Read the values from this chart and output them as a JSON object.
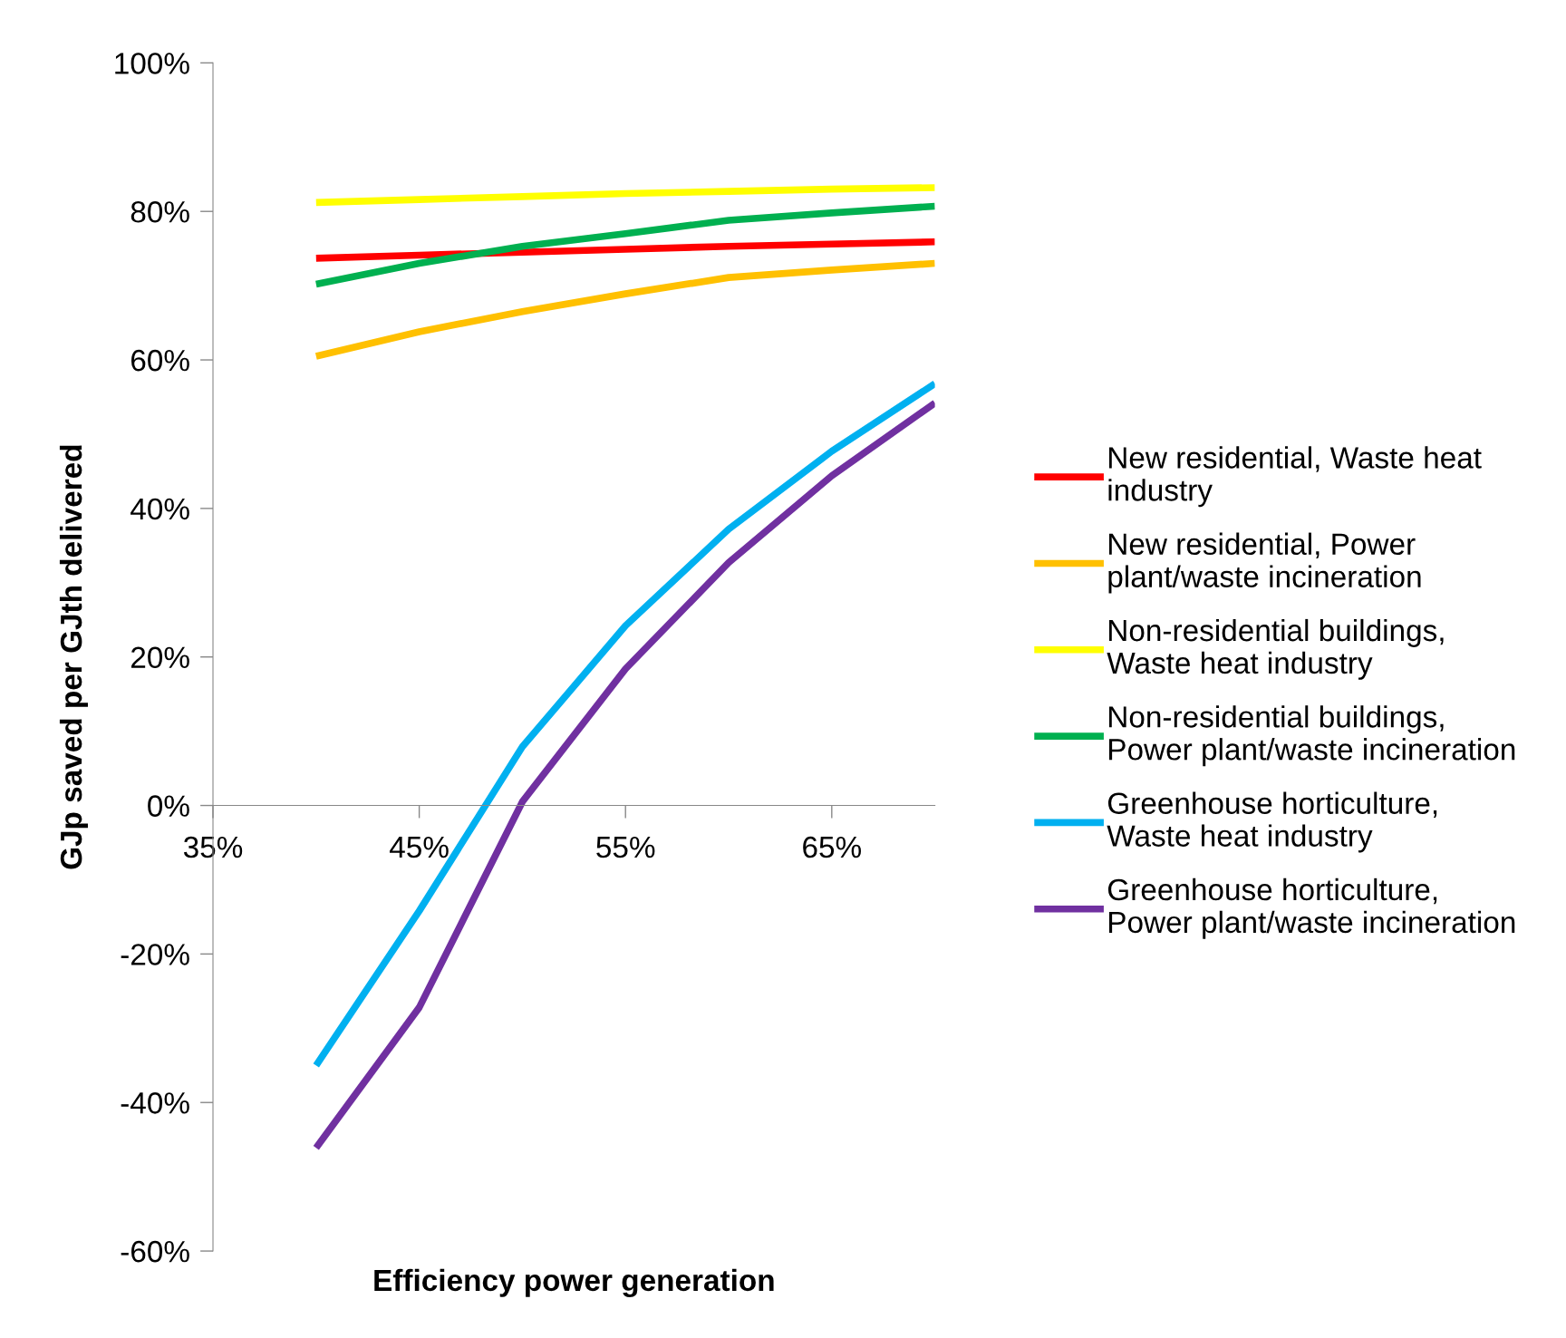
{
  "chart_data": {
    "type": "line",
    "xlabel": "Efficiency power generation",
    "ylabel": "GJp saved per GJth delivered",
    "x": [
      40,
      45,
      50,
      55,
      60,
      65,
      70
    ],
    "series": [
      {
        "name": "New residential, Waste heat\nindustry",
        "color": "#ff0000",
        "values": [
          73.7,
          74.1,
          74.5,
          74.9,
          75.3,
          75.6,
          75.9
        ]
      },
      {
        "name": "New residential, Power\nplant/waste incineration",
        "color": "#ffc000",
        "values": [
          60.5,
          63.8,
          66.5,
          68.9,
          71.1,
          72.1,
          73.0
        ]
      },
      {
        "name": "Non-residential buildings,\nWaste heat industry",
        "color": "#ffff00",
        "values": [
          81.2,
          81.6,
          82.0,
          82.4,
          82.7,
          83.0,
          83.2
        ]
      },
      {
        "name": "Non-residential buildings,\nPower plant/waste incineration",
        "color": "#00b050",
        "values": [
          70.2,
          73.0,
          75.3,
          77.0,
          78.8,
          79.8,
          80.7
        ]
      },
      {
        "name": "Greenhouse horticulture,\nWaste heat industry",
        "color": "#00b0f0",
        "values": [
          -35.0,
          -14.2,
          7.9,
          24.2,
          37.2,
          47.7,
          56.8
        ]
      },
      {
        "name": "Greenhouse horticulture,\nPower plant/waste incineration",
        "color": "#7030a0",
        "values": [
          -46.1,
          -27.2,
          0.5,
          18.4,
          32.7,
          44.4,
          54.2
        ]
      }
    ],
    "xlim": [
      35,
      70
    ],
    "ylim": [
      -60,
      100
    ],
    "xticks": [
      {
        "value": 35,
        "label": "35%"
      },
      {
        "value": 45,
        "label": "45%"
      },
      {
        "value": 55,
        "label": "55%"
      },
      {
        "value": 65,
        "label": "65%"
      }
    ],
    "yticks": [
      {
        "value": -60,
        "label": "-60%"
      },
      {
        "value": -40,
        "label": "-40%"
      },
      {
        "value": -20,
        "label": "-20%"
      },
      {
        "value": 0,
        "label": "0%"
      },
      {
        "value": 20,
        "label": "20%"
      },
      {
        "value": 40,
        "label": "40%"
      },
      {
        "value": 60,
        "label": "60%"
      },
      {
        "value": 80,
        "label": "80%"
      },
      {
        "value": 100,
        "label": "100%"
      }
    ],
    "legend": "right",
    "grid": false,
    "marker": "none",
    "line_style": "solid"
  }
}
